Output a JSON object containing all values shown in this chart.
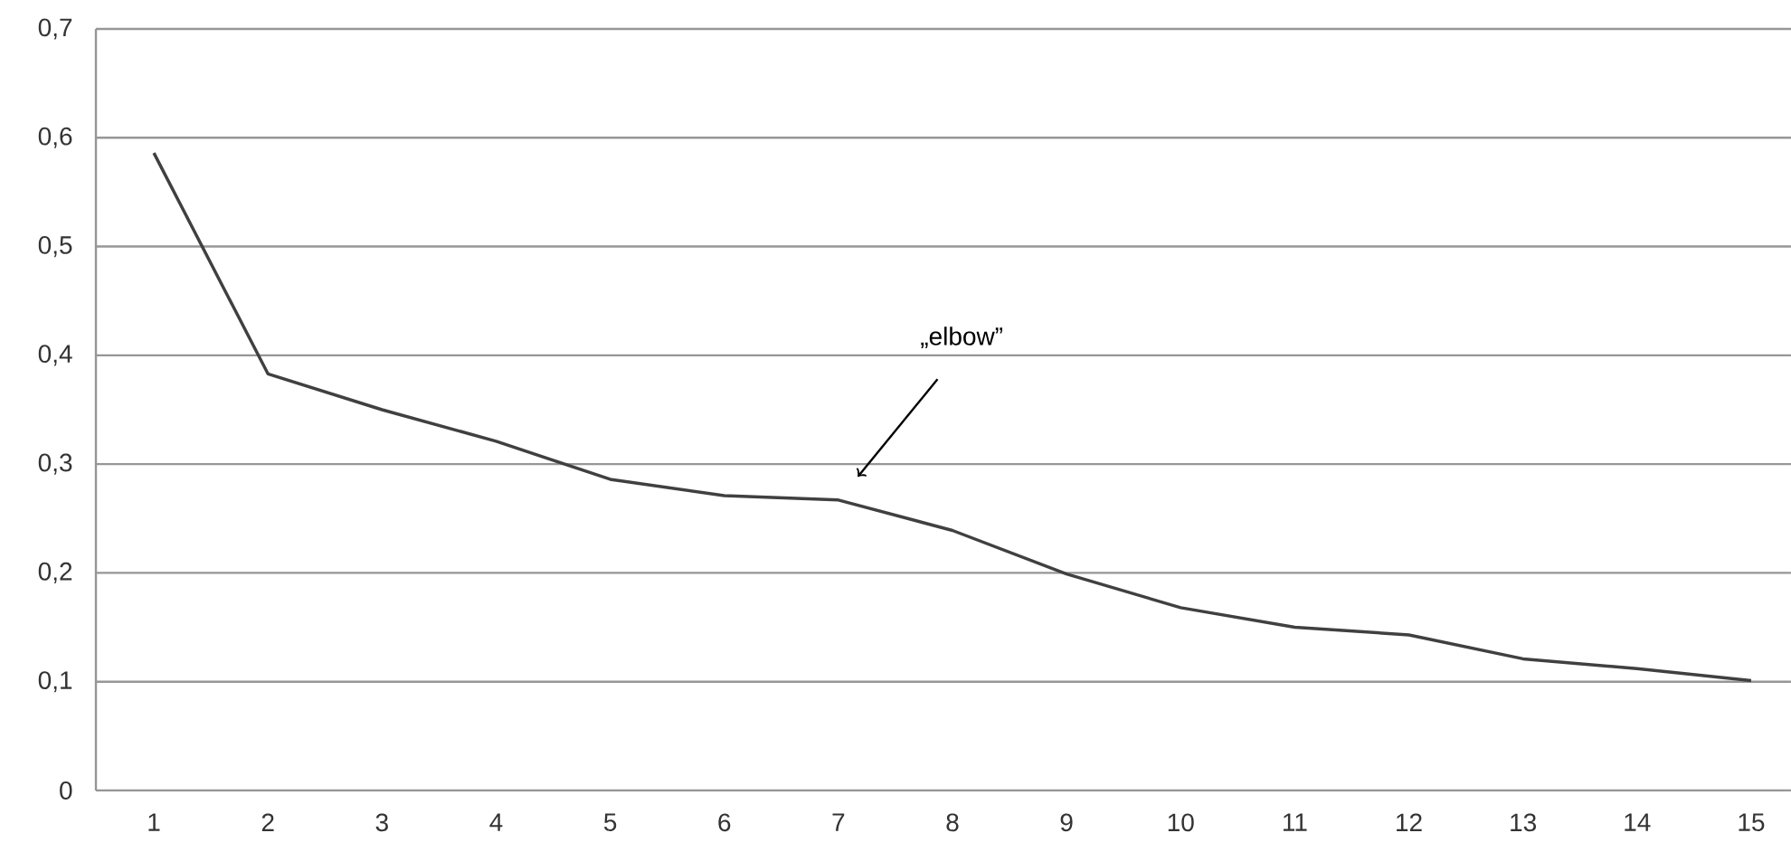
{
  "chart_data": {
    "type": "line",
    "categories": [
      "1",
      "2",
      "3",
      "4",
      "5",
      "6",
      "7",
      "8",
      "9",
      "10",
      "11",
      "12",
      "13",
      "14",
      "15"
    ],
    "values": [
      0.586,
      0.383,
      0.35,
      0.321,
      0.286,
      0.271,
      0.267,
      0.239,
      0.199,
      0.168,
      0.15,
      0.143,
      0.121,
      0.112,
      0.101
    ],
    "color": "#404040",
    "ylim": [
      0,
      0.7
    ],
    "yticks": [
      0,
      {
        "value": 0.1,
        "label": "0,1"
      },
      {
        "value": 0.2,
        "label": "0,2"
      },
      {
        "value": 0.3,
        "label": "0,3"
      },
      {
        "value": 0.4,
        "label": "0,4"
      },
      {
        "value": 0.5,
        "label": "0,5"
      },
      {
        "value": 0.6,
        "label": "0,6"
      },
      {
        "value": 0.7,
        "label": "0,7"
      }
    ],
    "grid": "y",
    "marker": "none",
    "line_style": "solid",
    "annotations": [
      "„elbow”"
    ]
  }
}
